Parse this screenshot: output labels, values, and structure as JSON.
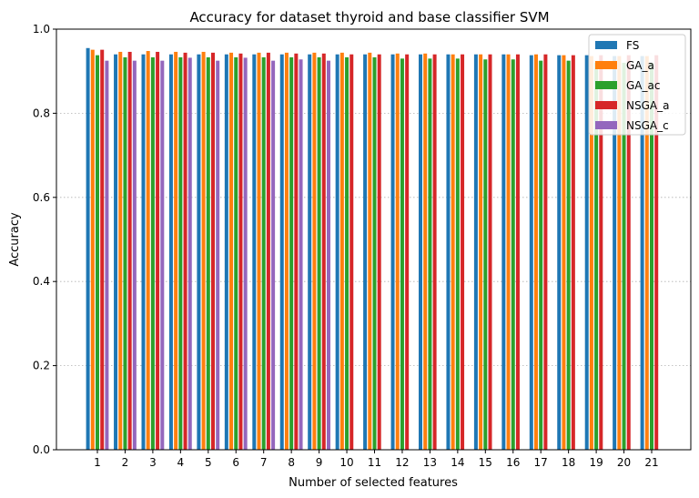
{
  "chart_data": {
    "type": "bar",
    "title": "Accuracy for dataset thyroid and base classifier SVM",
    "xlabel": "Number of selected features",
    "ylabel": "Accuracy",
    "ylim": [
      0,
      1
    ],
    "yticks": [
      "0.0",
      "0.2",
      "0.4",
      "0.6",
      "0.8",
      "1.0"
    ],
    "categories": [
      "1",
      "2",
      "3",
      "4",
      "5",
      "6",
      "7",
      "8",
      "9",
      "10",
      "11",
      "12",
      "13",
      "14",
      "15",
      "16",
      "17",
      "18",
      "19",
      "20",
      "21"
    ],
    "grid": "horizontal dotted",
    "legend_position": "top-right",
    "series": [
      {
        "name": "FS",
        "color": "#1f77b4",
        "values": [
          0.955,
          0.94,
          0.94,
          0.94,
          0.94,
          0.94,
          0.94,
          0.94,
          0.94,
          0.94,
          0.94,
          0.94,
          0.94,
          0.94,
          0.94,
          0.94,
          0.938,
          0.938,
          0.938,
          0.936,
          0.936
        ]
      },
      {
        "name": "GA_a",
        "color": "#ff7f0e",
        "values": [
          0.951,
          0.946,
          0.948,
          0.946,
          0.946,
          0.944,
          0.944,
          0.944,
          0.944,
          0.944,
          0.944,
          0.942,
          0.942,
          0.94,
          0.94,
          0.94,
          0.94,
          0.938,
          0.936,
          0.936,
          0.936
        ]
      },
      {
        "name": "GA_ac",
        "color": "#2ca02c",
        "values": [
          0.938,
          0.933,
          0.933,
          0.933,
          0.933,
          0.933,
          0.933,
          0.933,
          0.933,
          0.933,
          0.933,
          0.93,
          0.93,
          0.93,
          0.928,
          0.928,
          0.925,
          0.925,
          0.92,
          0.92,
          0.92
        ]
      },
      {
        "name": "NSGA_a",
        "color": "#d62728",
        "values": [
          0.951,
          0.946,
          0.946,
          0.944,
          0.944,
          0.942,
          0.944,
          0.942,
          0.942,
          0.94,
          0.94,
          0.94,
          0.94,
          0.94,
          0.94,
          0.94,
          0.94,
          0.938,
          0.938,
          0.938,
          0.938
        ]
      },
      {
        "name": "NSGA_c",
        "color": "#9467bd",
        "values": [
          0.925,
          0.925,
          0.925,
          0.932,
          0.925,
          0.932,
          0.925,
          0.928,
          0.925,
          null,
          null,
          null,
          null,
          null,
          null,
          null,
          null,
          null,
          null,
          null,
          null
        ]
      }
    ]
  }
}
